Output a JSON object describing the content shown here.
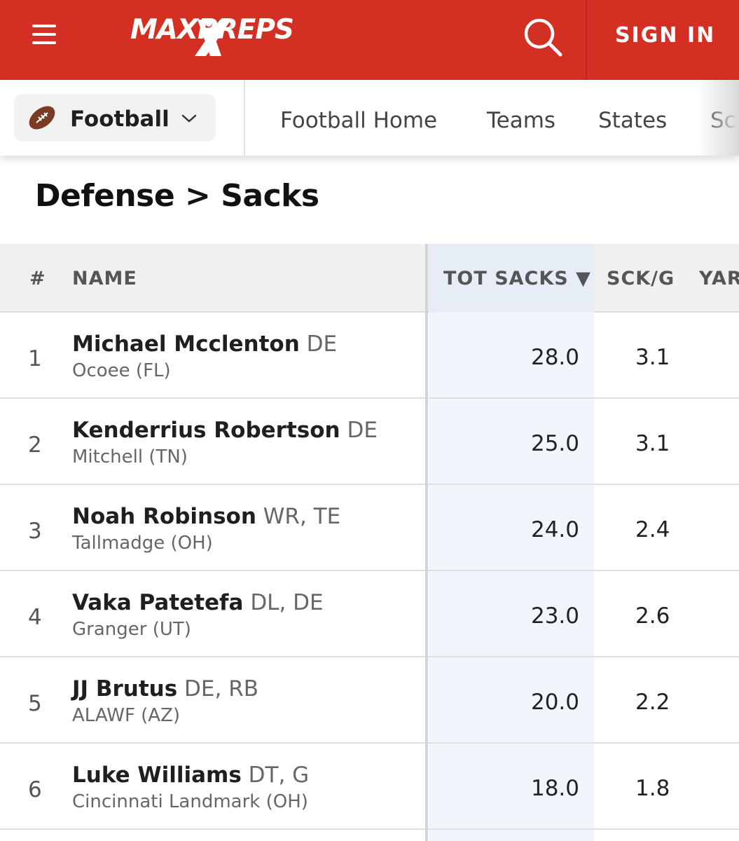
{
  "header": {
    "logo_text": "MAXPREPS",
    "signin_label": "SIGN IN",
    "colors": {
      "brand_red": "#d32f23"
    }
  },
  "sport_nav": {
    "sport": "Football",
    "links": [
      "Football Home",
      "Teams",
      "States",
      "Sc"
    ]
  },
  "page": {
    "title": "Defense > Sacks"
  },
  "table": {
    "columns": [
      "#",
      "NAME",
      "TOT SACKS ▼",
      "SCK/G",
      "YAR"
    ],
    "rows": [
      {
        "rank": "1",
        "name": "Michael Mcclenton",
        "pos": "DE",
        "school": "Ocoee (FL)",
        "tot_sacks": "28.0",
        "sck_g": "3.1"
      },
      {
        "rank": "2",
        "name": "Kenderrius Robertson",
        "pos": "DE",
        "school": "Mitchell (TN)",
        "tot_sacks": "25.0",
        "sck_g": "3.1"
      },
      {
        "rank": "3",
        "name": "Noah Robinson",
        "pos": "WR, TE",
        "school": "Tallmadge (OH)",
        "tot_sacks": "24.0",
        "sck_g": "2.4"
      },
      {
        "rank": "4",
        "name": "Vaka Patetefa",
        "pos": "DL, DE",
        "school": "Granger (UT)",
        "tot_sacks": "23.0",
        "sck_g": "2.6"
      },
      {
        "rank": "5",
        "name": "JJ Brutus",
        "pos": "DE, RB",
        "school": "ALAWF (AZ)",
        "tot_sacks": "20.0",
        "sck_g": "2.2"
      },
      {
        "rank": "6",
        "name": "Luke Williams",
        "pos": "DT, G",
        "school": "Cincinnati Landmark (OH)",
        "tot_sacks": "18.0",
        "sck_g": "1.8"
      }
    ]
  }
}
